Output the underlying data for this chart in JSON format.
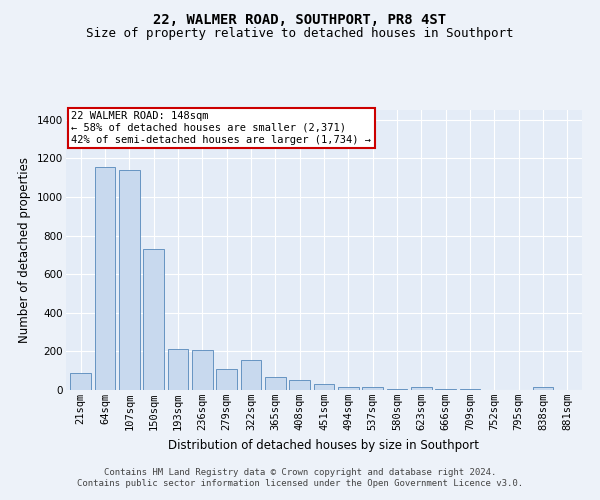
{
  "title": "22, WALMER ROAD, SOUTHPORT, PR8 4ST",
  "subtitle": "Size of property relative to detached houses in Southport",
  "xlabel": "Distribution of detached houses by size in Southport",
  "ylabel": "Number of detached properties",
  "footer_line1": "Contains HM Land Registry data © Crown copyright and database right 2024.",
  "footer_line2": "Contains public sector information licensed under the Open Government Licence v3.0.",
  "categories": [
    "21sqm",
    "64sqm",
    "107sqm",
    "150sqm",
    "193sqm",
    "236sqm",
    "279sqm",
    "322sqm",
    "365sqm",
    "408sqm",
    "451sqm",
    "494sqm",
    "537sqm",
    "580sqm",
    "623sqm",
    "666sqm",
    "709sqm",
    "752sqm",
    "795sqm",
    "838sqm",
    "881sqm"
  ],
  "values": [
    90,
    1155,
    1140,
    730,
    210,
    205,
    110,
    155,
    68,
    50,
    32,
    18,
    15,
    5,
    18,
    5,
    5,
    0,
    0,
    18,
    0
  ],
  "bar_color": "#c8d9ee",
  "bar_edge_color": "#5588bb",
  "ylim": [
    0,
    1450
  ],
  "yticks": [
    0,
    200,
    400,
    600,
    800,
    1000,
    1200,
    1400
  ],
  "annotation_text": "22 WALMER ROAD: 148sqm\n← 58% of detached houses are smaller (2,371)\n42% of semi-detached houses are larger (1,734) →",
  "annotation_box_facecolor": "#ffffff",
  "annotation_box_edgecolor": "#cc0000",
  "bg_color": "#edf2f9",
  "plot_bg_color": "#e4ecf7",
  "grid_color": "#ffffff",
  "title_fontsize": 10,
  "subtitle_fontsize": 9,
  "axis_label_fontsize": 8.5,
  "tick_fontsize": 7.5,
  "footer_fontsize": 6.5
}
